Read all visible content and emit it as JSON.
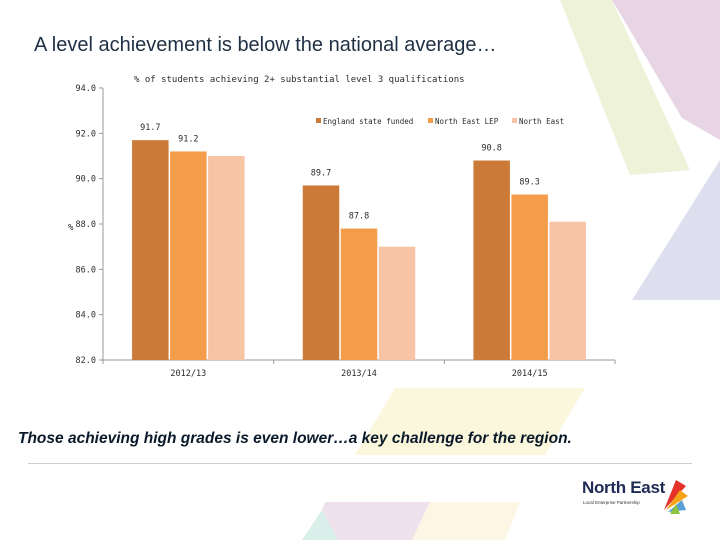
{
  "slide": {
    "title": "A level achievement is below the national average…",
    "caption": "Those achieving high grades is even lower…a key challenge for the region."
  },
  "logo": {
    "name": "North East",
    "tagline": "Local Enterprise Partnership"
  },
  "colors": {
    "england": "#cc7a38",
    "ne_lep": "#f39c4a",
    "north_east": "#f8c4a6",
    "deco_pink": "#e7d5e6",
    "deco_green": "#eef2d8",
    "deco_lavender": "#dedfee",
    "deco_yellow": "#fbf7dc",
    "deco_mint": "#d9efe9"
  },
  "chart_data": {
    "type": "bar",
    "title": "% of students achieving 2+ substantial level 3 qualifications",
    "ylabel": "%",
    "categories": [
      "2012/13",
      "2013/14",
      "2014/15"
    ],
    "series": [
      {
        "name": "England state funded",
        "color": "#cc7a38",
        "values": [
          91.7,
          89.7,
          90.8
        ]
      },
      {
        "name": "North East LEP",
        "color": "#f39c4a",
        "values": [
          91.2,
          87.8,
          89.3
        ]
      },
      {
        "name": "North East",
        "color": "#f8c4a6",
        "values": [
          91.0,
          87.0,
          88.1
        ]
      }
    ],
    "data_labels": [
      {
        "series": 0,
        "category": 0,
        "text": "91.7"
      },
      {
        "series": 1,
        "category": 0,
        "text": "91.2"
      },
      {
        "series": 0,
        "category": 1,
        "text": "89.7"
      },
      {
        "series": 1,
        "category": 1,
        "text": "87.8"
      },
      {
        "series": 0,
        "category": 2,
        "text": "90.8"
      },
      {
        "series": 1,
        "category": 2,
        "text": "89.3"
      }
    ],
    "yticks": [
      "82.0",
      "84.0",
      "86.0",
      "88.0",
      "90.0",
      "92.0",
      "94.0"
    ],
    "ylim": [
      82,
      94
    ],
    "legend_position": "top-right",
    "grid": false
  }
}
